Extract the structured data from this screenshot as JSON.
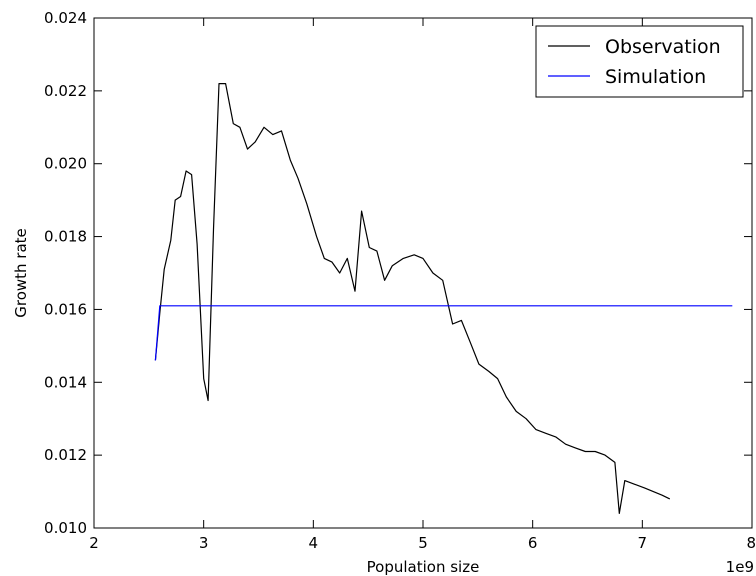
{
  "chart_data": {
    "type": "line",
    "xlabel": "Population size",
    "ylabel": "Growth rate",
    "x_offset_label": "1e9",
    "xlim": [
      2,
      8
    ],
    "ylim": [
      0.01,
      0.024
    ],
    "x_ticks": [
      "2",
      "3",
      "4",
      "5",
      "6",
      "7",
      "8"
    ],
    "y_ticks": [
      "0.010",
      "0.012",
      "0.014",
      "0.016",
      "0.018",
      "0.020",
      "0.022",
      "0.024"
    ],
    "grid": false,
    "legend_position": "top-right",
    "series": [
      {
        "name": "Observation",
        "color": "#000000",
        "x": [
          2.56,
          2.6,
          2.64,
          2.7,
          2.74,
          2.79,
          2.84,
          2.89,
          2.94,
          3.0,
          3.04,
          3.09,
          3.14,
          3.2,
          3.27,
          3.33,
          3.4,
          3.47,
          3.55,
          3.63,
          3.71,
          3.79,
          3.86,
          3.94,
          4.03,
          4.1,
          4.17,
          4.24,
          4.31,
          4.38,
          4.44,
          4.51,
          4.58,
          4.65,
          4.72,
          4.82,
          4.92,
          5.0,
          5.09,
          5.18,
          5.27,
          5.35,
          5.43,
          5.51,
          5.6,
          5.68,
          5.76,
          5.85,
          5.94,
          6.03,
          6.12,
          6.21,
          6.3,
          6.39,
          6.48,
          6.57,
          6.66,
          6.75,
          6.79,
          6.84,
          6.93,
          7.02,
          7.1,
          7.18,
          7.25
        ],
        "y": [
          0.0146,
          0.0159,
          0.0171,
          0.0179,
          0.019,
          0.0191,
          0.0198,
          0.0197,
          0.0178,
          0.0141,
          0.0135,
          0.0182,
          0.0222,
          0.0222,
          0.0211,
          0.021,
          0.0204,
          0.0206,
          0.021,
          0.0208,
          0.0209,
          0.0201,
          0.0196,
          0.0189,
          0.018,
          0.0174,
          0.0173,
          0.017,
          0.0174,
          0.0165,
          0.0187,
          0.0177,
          0.0176,
          0.0168,
          0.0172,
          0.0174,
          0.0175,
          0.0174,
          0.017,
          0.0168,
          0.0156,
          0.0157,
          0.0151,
          0.0145,
          0.0143,
          0.0141,
          0.0136,
          0.0132,
          0.013,
          0.0127,
          0.0126,
          0.0125,
          0.0123,
          0.0122,
          0.0121,
          0.0121,
          0.012,
          0.0118,
          0.0104,
          0.0113,
          0.0112,
          0.0111,
          0.011,
          0.0109,
          0.0108
        ]
      },
      {
        "name": "Simulation",
        "color": "#0000ff",
        "x": [
          2.56,
          2.6,
          7.82
        ],
        "y": [
          0.0146,
          0.0161,
          0.0161
        ]
      }
    ]
  }
}
